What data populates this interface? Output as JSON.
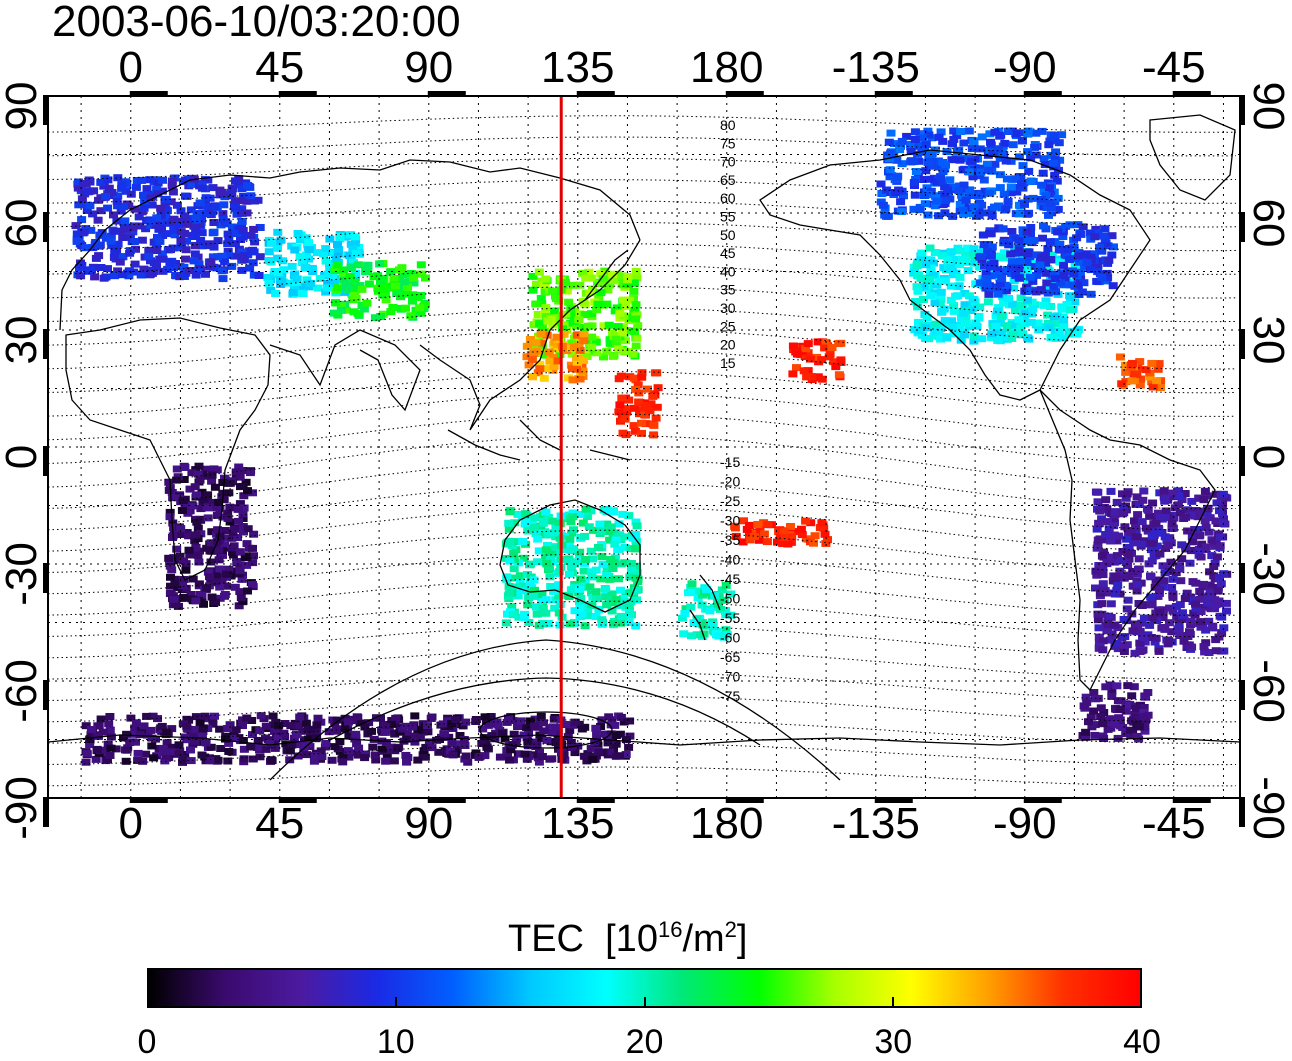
{
  "title": "2003-06-10/03:20:00",
  "map": {
    "lon_ticks": [
      "0",
      "45",
      "90",
      "135",
      "180",
      "-135",
      "-90",
      "-45"
    ],
    "lon_tick_values": [
      0,
      45,
      90,
      135,
      180,
      225,
      270,
      315
    ],
    "lat_ticks": [
      "90",
      "60",
      "30",
      "0",
      "-30",
      "-60",
      "-90"
    ],
    "lat_tick_values": [
      90,
      60,
      30,
      0,
      -30,
      -60,
      -90
    ],
    "lon_range": [
      -25,
      335
    ],
    "lat_range": [
      -90,
      90
    ],
    "red_meridian_lon": 130,
    "mlat_labels_north": [
      "80",
      "75",
      "70",
      "65",
      "60",
      "55",
      "50",
      "45",
      "40",
      "35",
      "30",
      "25",
      "20",
      "15"
    ],
    "mlat_labels_south": [
      "-15",
      "-20",
      "-25",
      "-30",
      "-35",
      "-40",
      "-45",
      "-50",
      "-55",
      "-60",
      "-65",
      "-70",
      "-75"
    ]
  },
  "colorbar": {
    "label": "TEC",
    "unit_prefix": "[10",
    "unit_exp": "16",
    "unit_mid": "/m",
    "unit_exp2": "2",
    "unit_suffix": "]",
    "ticks": [
      "0",
      "10",
      "20",
      "30",
      "40"
    ],
    "tick_values": [
      0,
      10,
      20,
      30,
      40
    ],
    "range": [
      0,
      40
    ],
    "colors": [
      "#000000",
      "#3a0a6e",
      "#4c1aa0",
      "#1a2ae6",
      "#0060ff",
      "#00c8ff",
      "#00ffff",
      "#00e878",
      "#00ff00",
      "#a8ff00",
      "#ffff00",
      "#ffa000",
      "#ff3000",
      "#ff0000"
    ]
  },
  "chart_data": {
    "type": "heatmap",
    "title": "2003-06-10/03:20:00",
    "x_ticks": [
      "0",
      "45",
      "90",
      "135",
      "180",
      "-135",
      "-90",
      "-45"
    ],
    "y_ticks": [
      "90",
      "60",
      "30",
      "0",
      "-30",
      "-60",
      "-90"
    ],
    "value_range": [
      0,
      40
    ],
    "regions": [
      {
        "lon": [
          -18,
          38
        ],
        "lat": [
          44,
          70
        ],
        "tec": 9
      },
      {
        "lon": [
          40,
          68
        ],
        "lat": [
          40,
          56
        ],
        "tec": 17
      },
      {
        "lon": [
          60,
          88
        ],
        "lat": [
          34,
          48
        ],
        "tec": 24
      },
      {
        "lon": [
          120,
          152
        ],
        "lat": [
          24,
          46
        ],
        "tec": 26
      },
      {
        "lon": [
          118,
          136
        ],
        "lat": [
          18,
          30
        ],
        "tec": 34
      },
      {
        "lon": [
          146,
          158
        ],
        "lat": [
          4,
          20
        ],
        "tec": 38
      },
      {
        "lon": [
          198,
          214
        ],
        "lat": [
          18,
          28
        ],
        "tec": 38
      },
      {
        "lon": [
          235,
          285
        ],
        "lat": [
          28,
          52
        ],
        "tec": 18
      },
      {
        "lon": [
          255,
          296
        ],
        "lat": [
          40,
          58
        ],
        "tec": 10
      },
      {
        "lon": [
          225,
          280
        ],
        "lat": [
          60,
          82
        ],
        "tec": 11
      },
      {
        "lon": [
          296,
          310
        ],
        "lat": [
          16,
          24
        ],
        "tec": 36
      },
      {
        "lon": [
          290,
          330
        ],
        "lat": [
          -52,
          -10
        ],
        "tec": 6
      },
      {
        "lon": [
          286,
          306
        ],
        "lat": [
          -74,
          -60
        ],
        "tec": 4
      },
      {
        "lon": [
          112,
          152
        ],
        "lat": [
          -45,
          -15
        ],
        "tec": 20
      },
      {
        "lon": [
          165,
          180
        ],
        "lat": [
          -48,
          -34
        ],
        "tec": 20
      },
      {
        "lon": [
          180,
          210
        ],
        "lat": [
          -24,
          -18
        ],
        "tec": 38
      },
      {
        "lon": [
          10,
          36
        ],
        "lat": [
          -40,
          -4
        ],
        "tec": 3
      },
      {
        "lon": [
          -15,
          150
        ],
        "lat": [
          -80,
          -68
        ],
        "tec": 3
      }
    ]
  }
}
